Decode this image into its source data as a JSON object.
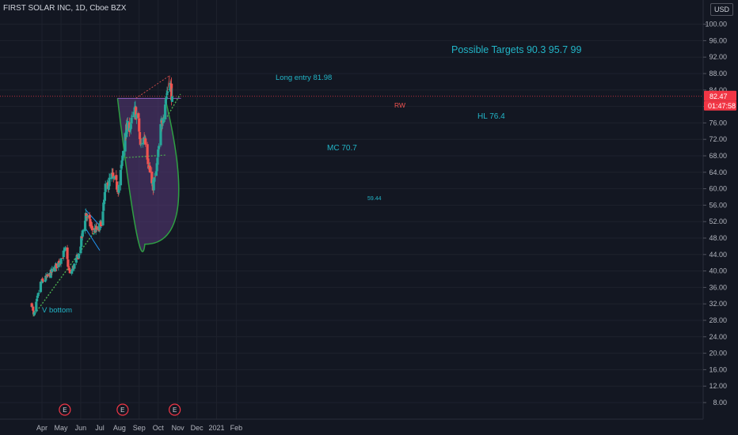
{
  "header": {
    "symbol_title": "FIRST SOLAR INC, 1D, Cboe BZX",
    "currency": "USD"
  },
  "price_badge": {
    "price": "82.47",
    "countdown": "01:47:58",
    "color": "#f23645"
  },
  "colors": {
    "background": "#131722",
    "up": "#26a69a",
    "down": "#ef5350",
    "annotation_teal": "#22b5c7",
    "cup_fill": "#5a3a7a",
    "cup_stroke": "#2ea043",
    "trendline_green": "#4caf50"
  },
  "annotations": {
    "targets": "Possible Targets  90.3   95.7   99",
    "long_entry": "Long entry 81.98",
    "rw": "RW",
    "hl": "HL 76.4",
    "mc": "MC 70.7",
    "low_label": "59.44",
    "v_bottom": "V bottom"
  },
  "earnings_marker": "E",
  "chart_data": {
    "type": "candlestick",
    "title": "FIRST SOLAR INC, 1D, Cboe BZX",
    "y_ticks": [
      "100.00",
      "96.00",
      "92.00",
      "88.00",
      "84.00",
      "80.00",
      "76.00",
      "72.00",
      "68.00",
      "64.00",
      "60.00",
      "56.00",
      "52.00",
      "48.00",
      "44.00",
      "40.00",
      "36.00",
      "32.00",
      "28.00",
      "24.00",
      "20.00",
      "16.00",
      "12.00",
      "8.00"
    ],
    "x_ticks": [
      "Apr",
      "May",
      "Jun",
      "Jul",
      "Aug",
      "Sep",
      "Oct",
      "Nov",
      "Dec",
      "2021",
      "Feb"
    ],
    "ylim": [
      4,
      106
    ],
    "last_price": 82.47,
    "anchors": [
      {
        "date": "2020-03-16",
        "close": 32
      },
      {
        "date": "2020-03-19",
        "close": 29
      },
      {
        "date": "2020-03-30",
        "close": 37
      },
      {
        "date": "2020-04-13",
        "close": 39
      },
      {
        "date": "2020-04-27",
        "close": 42
      },
      {
        "date": "2020-05-08",
        "close": 45
      },
      {
        "date": "2020-05-15",
        "close": 39
      },
      {
        "date": "2020-05-29",
        "close": 44
      },
      {
        "date": "2020-06-05",
        "close": 50
      },
      {
        "date": "2020-06-09",
        "close": 54
      },
      {
        "date": "2020-06-19",
        "close": 50
      },
      {
        "date": "2020-06-30",
        "close": 50
      },
      {
        "date": "2020-07-06",
        "close": 54
      },
      {
        "date": "2020-07-10",
        "close": 60
      },
      {
        "date": "2020-07-20",
        "close": 63
      },
      {
        "date": "2020-07-30",
        "close": 60
      },
      {
        "date": "2020-08-05",
        "close": 66
      },
      {
        "date": "2020-08-10",
        "close": 74
      },
      {
        "date": "2020-08-20",
        "close": 76
      },
      {
        "date": "2020-08-26",
        "close": 79
      },
      {
        "date": "2020-08-31",
        "close": 76
      },
      {
        "date": "2020-09-03",
        "close": 70
      },
      {
        "date": "2020-09-10",
        "close": 73
      },
      {
        "date": "2020-09-16",
        "close": 66
      },
      {
        "date": "2020-09-22",
        "close": 60
      },
      {
        "date": "2020-09-28",
        "close": 64
      },
      {
        "date": "2020-10-06",
        "close": 76
      },
      {
        "date": "2020-10-13",
        "close": 82
      },
      {
        "date": "2020-10-19",
        "close": 86
      },
      {
        "date": "2020-10-23",
        "close": 82.47
      }
    ],
    "levels": {
      "long_entry": 81.98,
      "mc": 70.7,
      "hl": 76.4,
      "low": 59.44,
      "targets": [
        90.3,
        95.7,
        99
      ]
    },
    "earnings_dates": [
      "2020-05-07",
      "2020-08-06",
      "2020-10-27"
    ]
  }
}
